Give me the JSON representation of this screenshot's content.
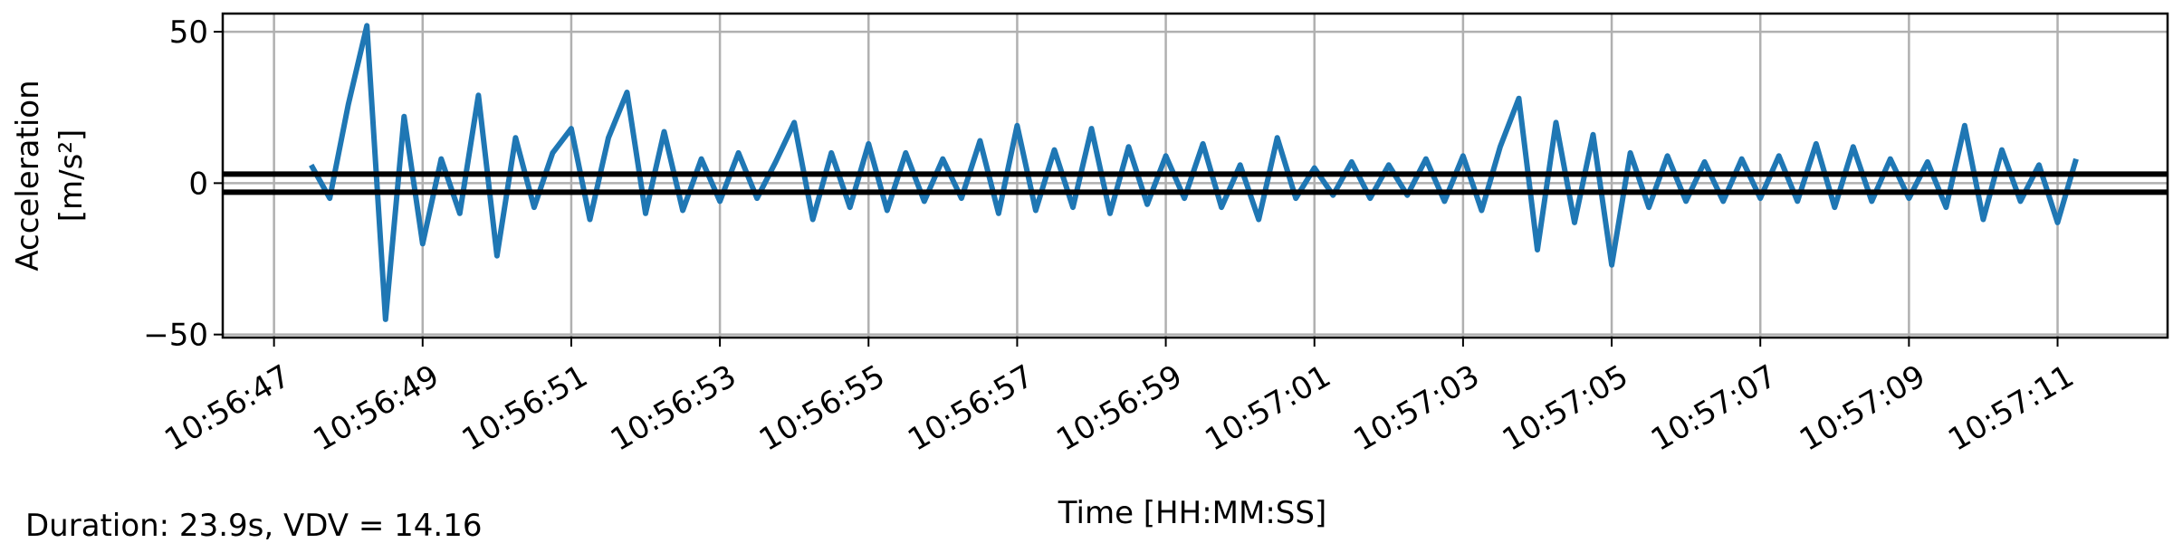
{
  "chart_data": {
    "type": "line",
    "ylabel": [
      "Acceleration",
      "[m/s²]"
    ],
    "xlabel": "Time [HH:MM:SS]",
    "annotation": "Duration: 23.9s, VDV = 14.16",
    "xlim": [
      39406.31,
      39432.48
    ],
    "ylim": [
      -51,
      56
    ],
    "xticks": [
      {
        "value": 39407,
        "label": "10:56:47"
      },
      {
        "value": 39409,
        "label": "10:56:49"
      },
      {
        "value": 39411,
        "label": "10:56:51"
      },
      {
        "value": 39413,
        "label": "10:56:53"
      },
      {
        "value": 39415,
        "label": "10:56:55"
      },
      {
        "value": 39417,
        "label": "10:56:57"
      },
      {
        "value": 39419,
        "label": "10:56:59"
      },
      {
        "value": 39421,
        "label": "10:57:01"
      },
      {
        "value": 39423,
        "label": "10:57:03"
      },
      {
        "value": 39425,
        "label": "10:57:05"
      },
      {
        "value": 39427,
        "label": "10:57:07"
      },
      {
        "value": 39429,
        "label": "10:57:09"
      },
      {
        "value": 39431,
        "label": "10:57:11"
      }
    ],
    "yticks": [
      {
        "value": -50,
        "label": "−50"
      },
      0,
      50
    ],
    "grid": true,
    "reference_lines": {
      "color": "#000000",
      "values": [
        3,
        -3
      ]
    },
    "series": [
      {
        "color": "#1f77b4",
        "x": [
          39407.5,
          39407.75,
          39408,
          39408.25,
          39408.5,
          39408.75,
          39409,
          39409.25,
          39409.5,
          39409.75,
          39410,
          39410.25,
          39410.5,
          39410.75,
          39411,
          39411.25,
          39411.5,
          39411.75,
          39412,
          39412.25,
          39412.5,
          39412.75,
          39413,
          39413.25,
          39413.5,
          39413.75,
          39414,
          39414.25,
          39414.5,
          39414.75,
          39415,
          39415.25,
          39415.5,
          39415.75,
          39416,
          39416.25,
          39416.5,
          39416.75,
          39417,
          39417.25,
          39417.5,
          39417.75,
          39418,
          39418.25,
          39418.5,
          39418.75,
          39419,
          39419.25,
          39419.5,
          39419.75,
          39420,
          39420.25,
          39420.5,
          39420.75,
          39421,
          39421.25,
          39421.5,
          39421.75,
          39422,
          39422.25,
          39422.5,
          39422.75,
          39423,
          39423.25,
          39423.5,
          39423.75,
          39424,
          39424.25,
          39424.5,
          39424.75,
          39425,
          39425.25,
          39425.5,
          39425.75,
          39426,
          39426.25,
          39426.5,
          39426.75,
          39427,
          39427.25,
          39427.5,
          39427.75,
          39428,
          39428.25,
          39428.5,
          39428.75,
          39429,
          39429.25,
          39429.5,
          39429.75,
          39430,
          39430.25,
          39430.5,
          39430.75,
          39431,
          39431.25
        ],
        "values": [
          6,
          -5,
          26,
          52,
          -45,
          22,
          -20,
          8,
          -10,
          29,
          -24,
          15,
          -8,
          10,
          18,
          -12,
          15,
          30,
          -10,
          17,
          -9,
          8,
          -6,
          10,
          -5,
          7,
          20,
          -12,
          10,
          -8,
          13,
          -9,
          10,
          -6,
          8,
          -5,
          14,
          -10,
          19,
          -9,
          11,
          -8,
          18,
          -10,
          12,
          -7,
          9,
          -5,
          13,
          -8,
          6,
          -12,
          15,
          -5,
          5,
          -4,
          7,
          -5,
          6,
          -4,
          8,
          -6,
          9,
          -9,
          12,
          28,
          -22,
          20,
          -13,
          16,
          -27,
          10,
          -8,
          9,
          -6,
          7,
          -6,
          8,
          -5,
          9,
          -6,
          13,
          -8,
          12,
          -6,
          8,
          -5,
          7,
          -8,
          19,
          -12,
          11,
          -6,
          6,
          -13,
          8
        ]
      }
    ]
  }
}
